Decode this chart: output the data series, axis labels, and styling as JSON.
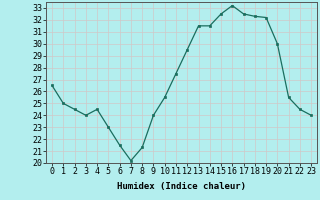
{
  "x": [
    0,
    1,
    2,
    3,
    4,
    5,
    6,
    7,
    8,
    9,
    10,
    11,
    12,
    13,
    14,
    15,
    16,
    17,
    18,
    19,
    20,
    21,
    22,
    23
  ],
  "y": [
    26.5,
    25.0,
    24.5,
    24.0,
    24.5,
    23.0,
    21.5,
    20.2,
    21.3,
    24.0,
    25.5,
    27.5,
    29.5,
    31.5,
    31.5,
    32.5,
    33.2,
    32.5,
    32.3,
    32.2,
    30.0,
    25.5,
    24.5,
    24.0
  ],
  "line_color": "#1a6e5e",
  "marker": "s",
  "marker_size": 2,
  "bg_color": "#b3eeee",
  "grid_color": "#d0c8c8",
  "xlabel": "Humidex (Indice chaleur)",
  "xlim": [
    -0.5,
    23.5
  ],
  "ylim": [
    20,
    33.5
  ],
  "yticks": [
    20,
    21,
    22,
    23,
    24,
    25,
    26,
    27,
    28,
    29,
    30,
    31,
    32,
    33
  ],
  "xticks": [
    0,
    1,
    2,
    3,
    4,
    5,
    6,
    7,
    8,
    9,
    10,
    11,
    12,
    13,
    14,
    15,
    16,
    17,
    18,
    19,
    20,
    21,
    22,
    23
  ],
  "xlabel_fontsize": 6.5,
  "tick_fontsize": 6.0
}
